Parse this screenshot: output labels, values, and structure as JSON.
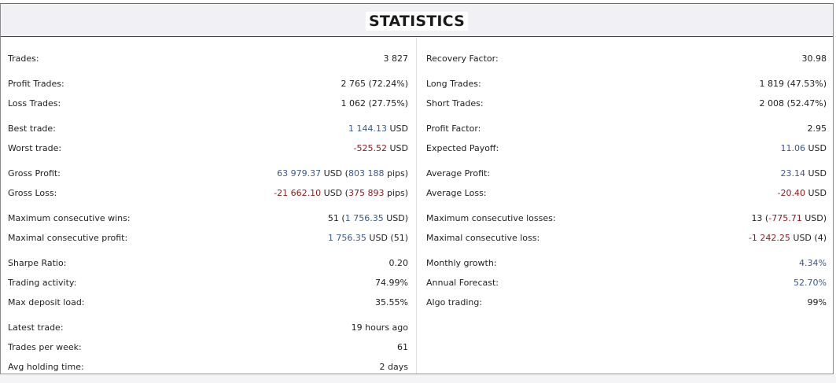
{
  "title": "STATISTICS",
  "colors": {
    "positive": "#3c5a8c",
    "negative": "#8b1a1a"
  },
  "left": [
    {
      "label": "Trades:",
      "value": "3 827"
    },
    {
      "label": "Profit Trades:",
      "value": "2 765 (72.24%)"
    },
    {
      "label": "Loss Trades:",
      "value": "1 062 (27.75%)"
    },
    {
      "label": "Best trade:",
      "value_colored": "1 144.13",
      "value_suffix": " USD",
      "tone": "blue"
    },
    {
      "label": "Worst trade:",
      "value_colored": "-525.52",
      "value_suffix": " USD",
      "tone": "red"
    },
    {
      "label": "Gross Profit:",
      "value_colored": "63 979.37",
      "value_mid": " USD (",
      "value_colored2": "803 188",
      "value_suffix": " pips)",
      "tone": "blue"
    },
    {
      "label": "Gross Loss:",
      "value_colored": "-21 662.10",
      "value_mid": " USD (",
      "value_colored2": "375 893",
      "value_suffix": " pips)",
      "tone": "red"
    },
    {
      "label": "Maximum consecutive wins:",
      "value_prefix": "51 (",
      "value_colored": "1 756.35",
      "value_suffix": " USD)",
      "tone": "blue"
    },
    {
      "label": "Maximal consecutive profit:",
      "value_colored": "1 756.35",
      "value_suffix": " USD (51)",
      "tone": "blue"
    },
    {
      "label": "Sharpe Ratio:",
      "value": "0.20"
    },
    {
      "label": "Trading activity:",
      "value": "74.99%"
    },
    {
      "label": "Max deposit load:",
      "value": "35.55%"
    },
    {
      "label": "Latest trade:",
      "value": "19 hours ago"
    },
    {
      "label": "Trades per week:",
      "value": "61"
    },
    {
      "label": "Avg holding time:",
      "value": "2 days"
    }
  ],
  "right": [
    {
      "label": "Recovery Factor:",
      "value": "30.98"
    },
    {
      "label": "Long Trades:",
      "value": "1 819 (47.53%)"
    },
    {
      "label": "Short Trades:",
      "value": "2 008 (52.47%)"
    },
    {
      "label": "Profit Factor:",
      "value": "2.95"
    },
    {
      "label": "Expected Payoff:",
      "value_colored": "11.06",
      "value_suffix": " USD",
      "tone": "blue"
    },
    {
      "label": "Average Profit:",
      "value_colored": "23.14",
      "value_suffix": " USD",
      "tone": "blue"
    },
    {
      "label": "Average Loss:",
      "value_colored": "-20.40",
      "value_suffix": " USD",
      "tone": "red"
    },
    {
      "label": "Maximum consecutive losses:",
      "value_prefix": "13 (",
      "value_colored": "-775.71",
      "value_suffix": " USD)",
      "tone": "red"
    },
    {
      "label": "Maximal consecutive loss:",
      "value_colored": "-1 242.25",
      "value_suffix": " USD (4)",
      "tone": "red"
    },
    {
      "label": "Monthly growth:",
      "value_colored": "4.34%",
      "tone": "blue"
    },
    {
      "label": "Annual Forecast:",
      "value_colored": "52.70%",
      "tone": "blue"
    },
    {
      "label": "Algo trading:",
      "value": "99%"
    }
  ]
}
